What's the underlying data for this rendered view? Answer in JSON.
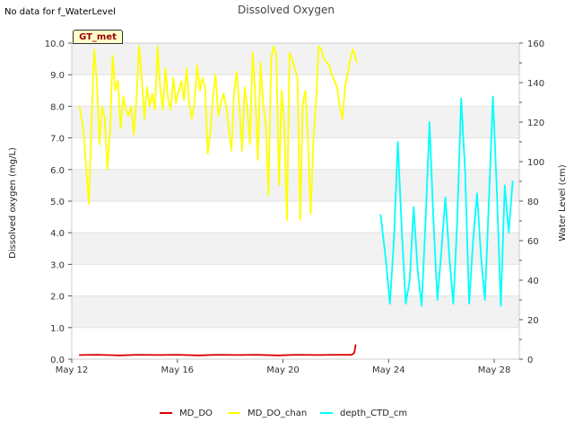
{
  "header": {
    "no_data_note": "No data for f_WaterLevel",
    "badge_label": "GT_met"
  },
  "chart_data": {
    "type": "line",
    "title": "Dissolved Oxygen",
    "ylabel": "Dissolved oxygen (mg/L)",
    "y2label": "Water Level (cm)",
    "ylim": [
      0,
      10
    ],
    "y2lim": [
      0,
      160
    ],
    "xlim": [
      12,
      28.95
    ],
    "x_ticks": [
      12,
      16,
      20,
      24,
      28
    ],
    "x_tick_labels": [
      "May 12",
      "May 16",
      "May 20",
      "May 24",
      "May 28"
    ],
    "y_ticks": [
      0,
      1,
      2,
      3,
      4,
      5,
      6,
      7,
      8,
      9,
      10
    ],
    "y_tick_labels": [
      "0.0",
      "1.0",
      "2.0",
      "3.0",
      "4.0",
      "5.0",
      "6.0",
      "7.0",
      "8.0",
      "9.0",
      "10.0"
    ],
    "y2_ticks": [
      0,
      20,
      40,
      60,
      80,
      100,
      120,
      140,
      160
    ],
    "y2_tick_labels": [
      "0",
      "20",
      "40",
      "60",
      "80",
      "100",
      "120",
      "140",
      "160"
    ],
    "series": [
      {
        "name": "MD_DO",
        "color": "#dd0000",
        "axis": "left",
        "x": [
          12.3,
          13.0,
          13.8,
          14.5,
          15.3,
          16.0,
          16.8,
          17.5,
          18.3,
          19.0,
          19.8,
          20.5,
          21.3,
          22.0,
          22.6,
          22.7,
          22.75
        ],
        "y": [
          0.13,
          0.14,
          0.12,
          0.14,
          0.13,
          0.14,
          0.12,
          0.14,
          0.13,
          0.14,
          0.12,
          0.14,
          0.13,
          0.14,
          0.14,
          0.2,
          0.45
        ]
      },
      {
        "name": "MD_DO_chan",
        "color": "#ffff00",
        "axis": "left",
        "x": [
          12.3,
          12.45,
          12.55,
          12.65,
          12.75,
          12.85,
          12.95,
          13.05,
          13.15,
          13.25,
          13.35,
          13.45,
          13.55,
          13.65,
          13.75,
          13.85,
          13.95,
          14.05,
          14.15,
          14.25,
          14.35,
          14.45,
          14.55,
          14.65,
          14.75,
          14.85,
          14.95,
          15.05,
          15.15,
          15.25,
          15.35,
          15.45,
          15.55,
          15.65,
          15.75,
          15.85,
          15.95,
          16.05,
          16.15,
          16.25,
          16.35,
          16.45,
          16.55,
          16.65,
          16.75,
          16.85,
          16.95,
          17.05,
          17.15,
          17.25,
          17.35,
          17.45,
          17.55,
          17.65,
          17.75,
          17.85,
          17.95,
          18.05,
          18.15,
          18.25,
          18.35,
          18.45,
          18.55,
          18.65,
          18.75,
          18.85,
          18.95,
          19.05,
          19.15,
          19.25,
          19.35,
          19.45,
          19.55,
          19.65,
          19.75,
          19.85,
          19.95,
          20.05,
          20.15,
          20.25,
          20.35,
          20.45,
          20.55,
          20.65,
          20.75,
          20.85,
          20.95,
          21.05,
          21.15,
          21.25,
          21.35,
          21.45,
          21.55,
          21.65,
          21.75,
          21.85,
          21.95,
          22.05,
          22.15,
          22.25,
          22.35,
          22.45,
          22.55,
          22.65,
          22.8
        ],
        "y": [
          8.0,
          7.2,
          6.0,
          4.9,
          7.5,
          9.8,
          8.8,
          6.8,
          8.0,
          7.6,
          6.0,
          7.2,
          9.6,
          8.5,
          8.8,
          7.3,
          8.3,
          7.9,
          7.7,
          8.0,
          7.1,
          8.2,
          9.9,
          8.9,
          7.6,
          8.6,
          8.0,
          8.4,
          7.9,
          9.9,
          8.6,
          7.9,
          9.2,
          8.2,
          7.9,
          8.9,
          8.1,
          8.5,
          8.8,
          8.2,
          9.2,
          8.1,
          7.6,
          8.1,
          9.3,
          8.5,
          8.9,
          8.6,
          6.5,
          7.2,
          8.3,
          9.0,
          7.7,
          8.1,
          8.4,
          8.0,
          7.3,
          6.6,
          8.5,
          9.1,
          8.0,
          6.6,
          8.6,
          7.9,
          6.8,
          9.7,
          8.4,
          6.3,
          9.4,
          8.1,
          7.4,
          5.2,
          9.5,
          9.9,
          9.6,
          5.5,
          8.5,
          7.4,
          4.4,
          9.7,
          9.5,
          9.2,
          8.9,
          4.4,
          8.1,
          8.5,
          6.9,
          4.6,
          6.9,
          8.1,
          9.9,
          9.8,
          9.5,
          9.4,
          9.3,
          9.0,
          8.8,
          8.6,
          8.0,
          7.6,
          8.6,
          9.0,
          9.5,
          9.8,
          9.4
        ]
      },
      {
        "name": "depth_CTD_cm",
        "color": "#00ffff",
        "axis": "right",
        "x": [
          23.7,
          23.9,
          24.05,
          24.2,
          24.35,
          24.5,
          24.65,
          24.8,
          24.95,
          25.1,
          25.25,
          25.4,
          25.55,
          25.7,
          25.85,
          26.0,
          26.15,
          26.3,
          26.45,
          26.6,
          26.75,
          26.9,
          27.05,
          27.2,
          27.35,
          27.5,
          27.65,
          27.8,
          27.95,
          28.1,
          28.25,
          28.4,
          28.55,
          28.7
        ],
        "y": [
          73,
          50,
          28,
          60,
          110,
          65,
          28,
          40,
          77,
          45,
          27,
          70,
          120,
          70,
          30,
          55,
          82,
          52,
          28,
          70,
          132,
          95,
          28,
          60,
          84,
          52,
          30,
          80,
          133,
          85,
          27,
          88,
          64,
          90
        ]
      }
    ],
    "legend_position": "bottom-center",
    "grid": "horizontal-bands"
  }
}
